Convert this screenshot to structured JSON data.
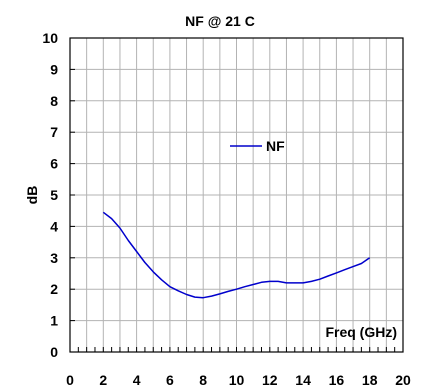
{
  "chart_data": {
    "type": "line",
    "title": "NF @ 21 C",
    "xlabel": "Freq (GHz)",
    "ylabel": "dB",
    "xlim": [
      0,
      20
    ],
    "ylim": [
      0,
      10
    ],
    "x_ticks": [
      "0",
      "2",
      "4",
      "6",
      "8",
      "10",
      "12",
      "14",
      "16",
      "18",
      "20"
    ],
    "y_ticks": [
      "0",
      "1",
      "2",
      "3",
      "4",
      "5",
      "6",
      "7",
      "8",
      "9",
      "10"
    ],
    "grid": true,
    "legend_position": "center-right",
    "series": [
      {
        "name": "NF",
        "color": "#0000cc",
        "x": [
          2,
          2.5,
          3,
          3.5,
          4,
          4.5,
          5,
          5.5,
          6,
          6.5,
          7,
          7.5,
          8,
          8.5,
          9,
          9.5,
          10,
          10.5,
          11,
          11.5,
          12,
          12.5,
          13,
          13.5,
          14,
          14.5,
          15,
          15.5,
          16,
          16.5,
          17,
          17.5,
          18
        ],
        "y": [
          4.45,
          4.25,
          3.95,
          3.55,
          3.2,
          2.85,
          2.55,
          2.3,
          2.08,
          1.95,
          1.83,
          1.75,
          1.73,
          1.78,
          1.85,
          1.93,
          2.0,
          2.08,
          2.15,
          2.22,
          2.25,
          2.25,
          2.2,
          2.2,
          2.2,
          2.25,
          2.32,
          2.42,
          2.52,
          2.62,
          2.72,
          2.82,
          3.0
        ]
      }
    ]
  }
}
